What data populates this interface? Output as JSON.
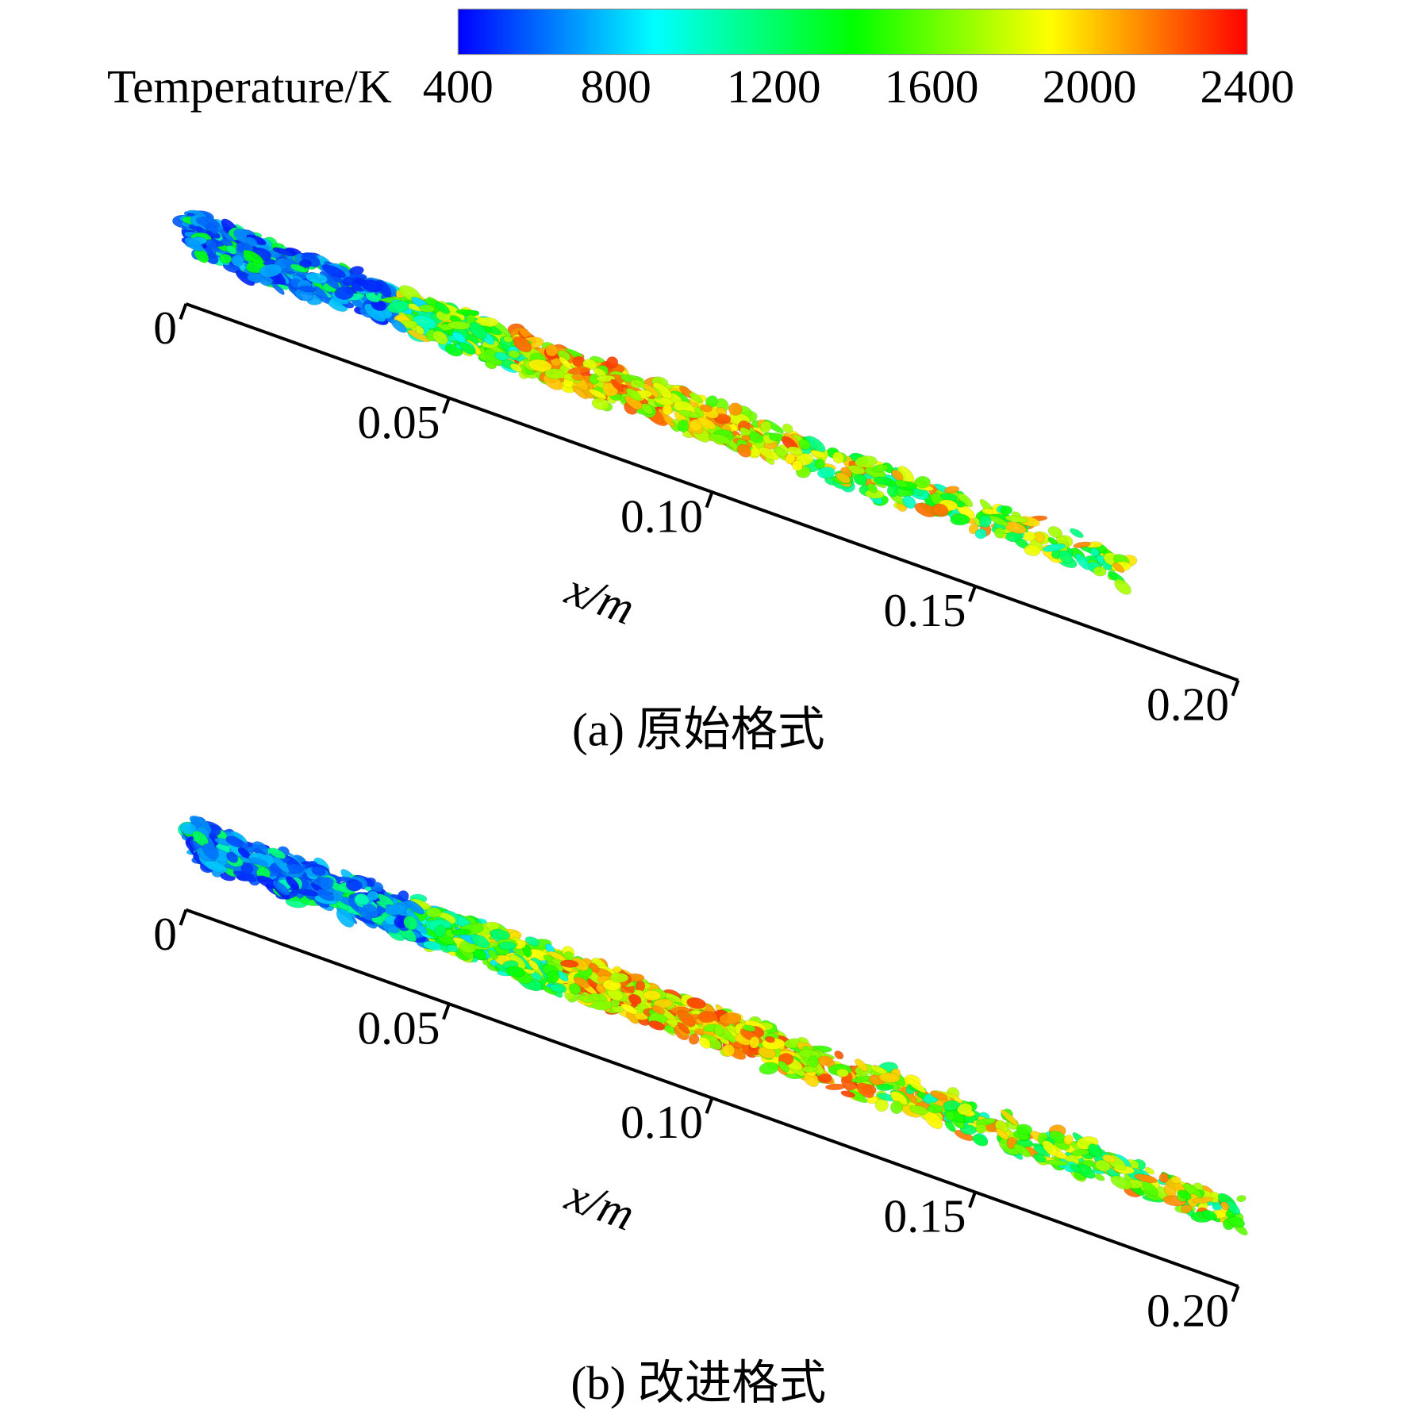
{
  "colorbar": {
    "label": "Temperature/K",
    "lim": [
      400,
      2400
    ],
    "ticks": [
      400,
      800,
      1200,
      1600,
      2000,
      2400
    ],
    "colors": [
      "#0000ff",
      "#0080ff",
      "#00ffff",
      "#00ff80",
      "#00ff00",
      "#80ff00",
      "#ffff00",
      "#ff8000",
      "#ff0000"
    ]
  },
  "panels": [
    {
      "caption": "(a) 原始格式",
      "axis_label": "x/m",
      "xlim": [
        0,
        0.2
      ],
      "xticks": [
        0,
        0.05,
        {
          "value": 0.1,
          "label": "0.10"
        },
        0.15,
        {
          "value": 0.2,
          "label": "0.20"
        }
      ]
    },
    {
      "caption": "(b) 改进格式",
      "axis_label": "x/m",
      "xlim": [
        0,
        0.2
      ],
      "xticks": [
        0,
        0.05,
        {
          "value": 0.1,
          "label": "0.10"
        },
        0.15,
        {
          "value": 0.2,
          "label": "0.20"
        }
      ]
    }
  ]
}
